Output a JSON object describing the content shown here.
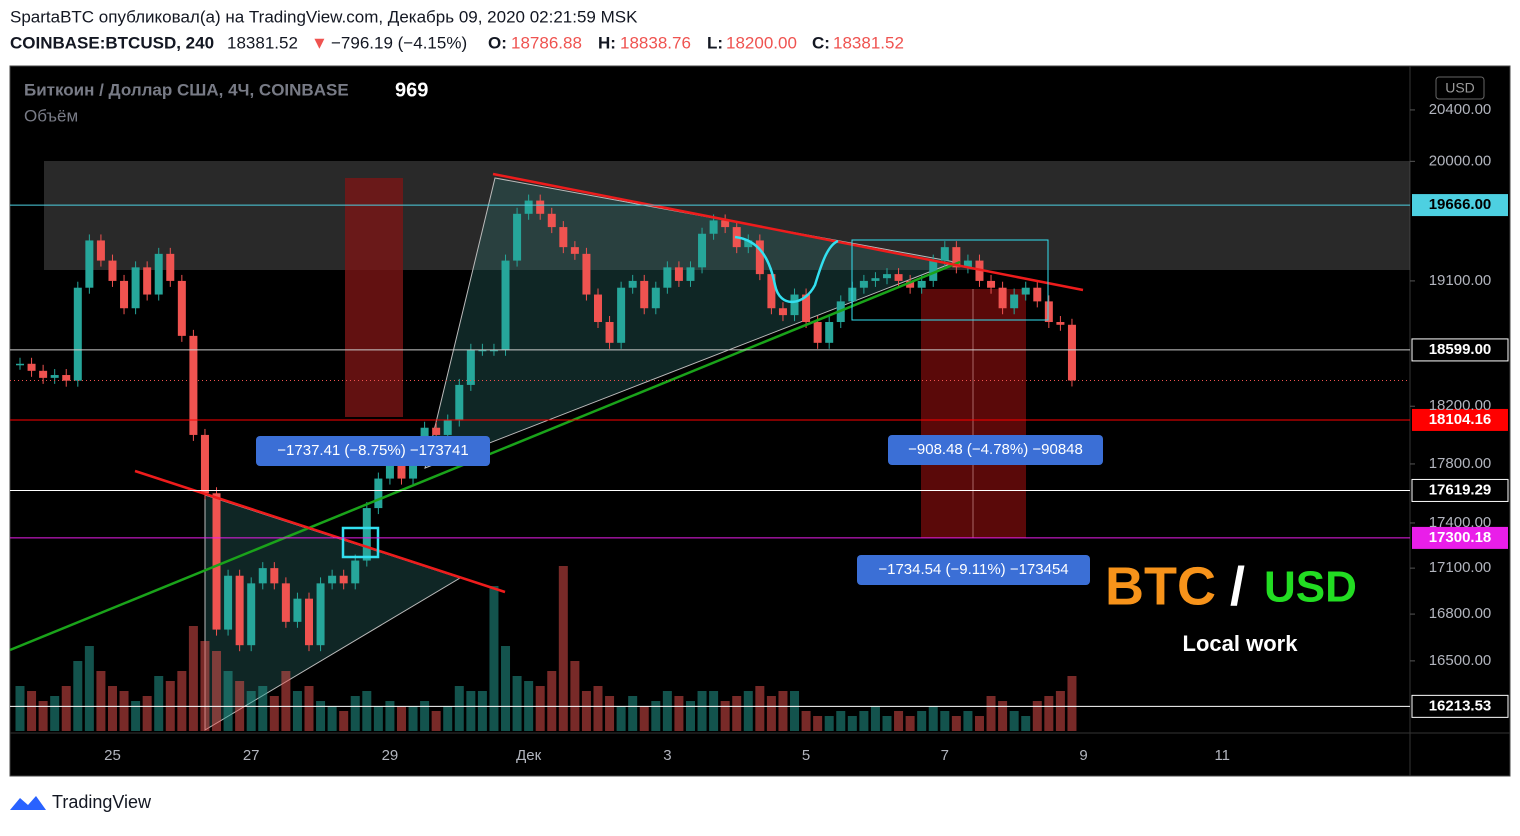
{
  "header": {
    "published": "SpartaBTC опубликовал(а) на TradingView.com, Декабрь 09, 2020 02:21:59 MSK",
    "symbol": "COINBASE:BTCUSD, 240",
    "last": "18381.52",
    "arrow": "▼",
    "change": "−796.19 (−4.15%)",
    "o_label": "O:",
    "o": "18786.88",
    "h_label": "H:",
    "h": "18838.76",
    "l_label": "L:",
    "l": "18200.00",
    "c_label": "C:",
    "c": "18381.52"
  },
  "chart": {
    "legend": "Биткоин / Доллар США, 4Ч, COINBASE",
    "legend_value": "969",
    "volume_label": "Объём",
    "currency": "USD",
    "log_scale": true,
    "ylim": [
      16048,
      20748
    ],
    "yticks": [
      {
        "value": 20400,
        "label": "20400.00"
      },
      {
        "value": 20000,
        "label": "20000.00"
      },
      {
        "value": 19100,
        "label": "19100.00"
      },
      {
        "value": 18200,
        "label": "18200.00"
      },
      {
        "value": 17800,
        "label": "17800.00"
      },
      {
        "value": 17400,
        "label": "17400.00"
      },
      {
        "value": 17100,
        "label": "17100.00"
      },
      {
        "value": 16800,
        "label": "16800.00"
      },
      {
        "value": 16500,
        "label": "16500.00"
      }
    ],
    "price_tags": [
      {
        "value": 19666,
        "label": "19666.00",
        "color": "#4dd0e1"
      },
      {
        "value": 18599,
        "label": "18599.00",
        "color": "#cccccc"
      },
      {
        "value": 18104.16,
        "label": "18104.16",
        "color": "#ff0000"
      },
      {
        "value": 17619.29,
        "label": "17619.29",
        "color": "#ffffff"
      },
      {
        "value": 17300.18,
        "label": "17300.18",
        "color": "#e91ee9"
      },
      {
        "value": 16213.53,
        "label": "16213.53",
        "color": "#ffffff"
      }
    ],
    "x_labels": [
      "25",
      "27",
      "29",
      "Дек",
      "3",
      "5",
      "7",
      "9",
      "11"
    ],
    "measures": [
      "−1737.41 (−8.75%) −173741",
      "−908.48 (−4.78%) −90848",
      "−1734.54 (−9.11%) −173454"
    ],
    "title_left": "BTC",
    "title_slash": "/",
    "title_right": "USD",
    "subtitle": "Local work",
    "up_color": "#26a69a",
    "down_color": "#ef5350",
    "close": [
      18500,
      18450,
      18400,
      18420,
      18380,
      19050,
      19400,
      19250,
      19100,
      18900,
      19200,
      19000,
      19300,
      19100,
      18700,
      18000,
      17600,
      16700,
      17050,
      16600,
      17000,
      17100,
      17000,
      16750,
      16900,
      16600,
      17000,
      17050,
      17000,
      17150,
      17500,
      17700,
      17800,
      17700,
      17950,
      18050,
      18000,
      18100,
      18350,
      18600,
      18600,
      18600,
      19250,
      19600,
      19700,
      19600,
      19500,
      19350,
      19300,
      19000,
      18800,
      18650,
      19050,
      19100,
      18900,
      19050,
      19200,
      19100,
      19200,
      19450,
      19550,
      19500,
      19350,
      19400,
      19150,
      18900,
      18850,
      19000,
      18800,
      18650,
      18800,
      18950,
      19050,
      19100,
      19120,
      19150,
      19100,
      19050,
      19100,
      19250,
      19350,
      19200,
      19250,
      19100,
      19050,
      18900,
      19000,
      19050,
      18950,
      18800,
      18780,
      18381.52
    ],
    "volume": [
      45,
      40,
      30,
      35,
      45,
      70,
      85,
      60,
      45,
      40,
      30,
      35,
      55,
      50,
      60,
      105,
      90,
      80,
      60,
      50,
      40,
      45,
      35,
      60,
      40,
      45,
      30,
      25,
      20,
      35,
      40,
      25,
      30,
      25,
      25,
      30,
      20,
      25,
      45,
      40,
      40,
      145,
      85,
      55,
      50,
      45,
      60,
      165,
      70,
      40,
      45,
      35,
      25,
      35,
      25,
      30,
      40,
      35,
      30,
      40,
      40,
      30,
      35,
      40,
      45,
      35,
      40,
      40,
      20,
      15,
      15,
      20,
      15,
      20,
      25,
      15,
      20,
      15,
      20,
      25,
      20,
      15,
      20,
      15,
      35,
      30,
      20,
      15,
      30,
      35,
      40,
      55
    ]
  },
  "footer": {
    "brand": "TradingView"
  }
}
